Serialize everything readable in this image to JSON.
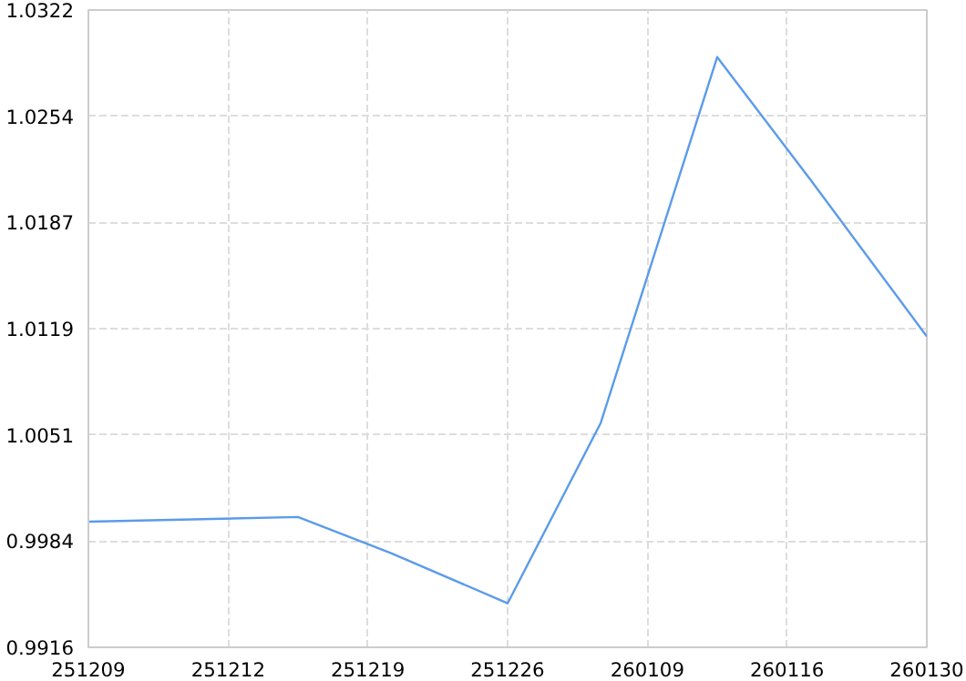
{
  "chart_data": {
    "type": "line",
    "categories": [
      "251209",
      null,
      null,
      null,
      null,
      null,
      "251212",
      null,
      null,
      null,
      null,
      null,
      "251219",
      null,
      null,
      null,
      null,
      null,
      "251226",
      null,
      null,
      null,
      null,
      null,
      "260109",
      null,
      null,
      null,
      null,
      null,
      "260116",
      null,
      null,
      null,
      null,
      null,
      "260130"
    ],
    "series": [
      {
        "color": "#5b9bea",
        "values": [
          0.9996,
          null,
          null,
          null,
          null,
          null,
          null,
          null,
          null,
          0.9999,
          null,
          null,
          null,
          0.9976,
          null,
          null,
          null,
          null,
          0.9944,
          null,
          null,
          null,
          1.0059,
          null,
          null,
          null,
          null,
          1.0292,
          null,
          null,
          null,
          1.0214,
          null,
          null,
          null,
          null,
          1.0114
        ]
      }
    ],
    "ylim": [
      0.9916,
      1.0322
    ],
    "yticks": [
      {
        "value": 0.9916,
        "label": "0.9916"
      },
      {
        "value": 0.99837,
        "label": "0.9984"
      },
      {
        "value": 1.00513,
        "label": "1.0051"
      },
      {
        "value": 1.0119,
        "label": "1.0119"
      },
      {
        "value": 1.01867,
        "label": "1.0187"
      },
      {
        "value": 1.02543,
        "label": "1.0254"
      },
      {
        "value": 1.0322,
        "label": "1.0322"
      }
    ],
    "grid": true,
    "line_style": "solid"
  }
}
